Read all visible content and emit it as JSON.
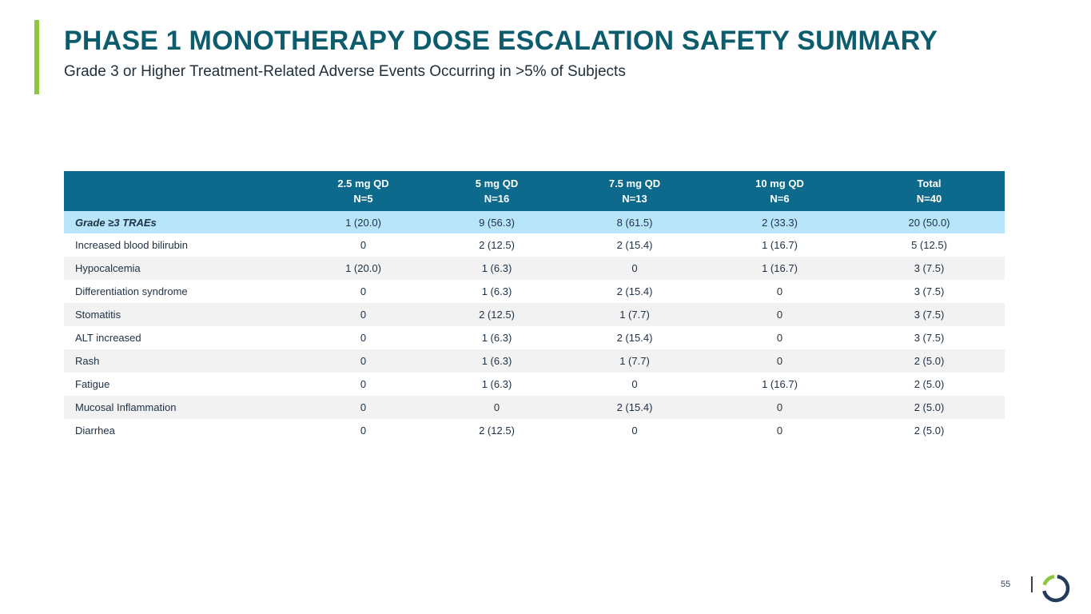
{
  "slide": {
    "title": "PHASE 1 MONOTHERAPY DOSE ESCALATION SAFETY SUMMARY",
    "subtitle": "Grade 3 or Higher Treatment-Related Adverse Events Occurring in >5% of Subjects"
  },
  "colors": {
    "accent_green": "#8dc63f",
    "title_teal": "#0d5c6d",
    "table_header_bg": "#0e6a8d",
    "highlight_row_bg": "#b8e5f9",
    "stripe_row_bg": "#f2f2f2",
    "body_text": "#203246",
    "logo_navy": "#243b5e"
  },
  "table": {
    "columns": [
      {
        "label": "",
        "sublabel": ""
      },
      {
        "label": "2.5 mg QD",
        "sublabel": "N=5"
      },
      {
        "label": "5 mg QD",
        "sublabel": "N=16"
      },
      {
        "label": "7.5 mg QD",
        "sublabel": "N=13"
      },
      {
        "label": "10 mg QD",
        "sublabel": "N=6"
      },
      {
        "label": "Total",
        "sublabel": "N=40"
      }
    ],
    "highlight_row": {
      "label": "Grade ≥3 TRAEs",
      "values": [
        "1 (20.0)",
        "9 (56.3)",
        "8 (61.5)",
        "2 (33.3)",
        "20 (50.0)"
      ]
    },
    "rows": [
      {
        "label": "Increased blood bilirubin",
        "values": [
          "0",
          "2 (12.5)",
          "2 (15.4)",
          "1 (16.7)",
          "5 (12.5)"
        ]
      },
      {
        "label": "Hypocalcemia",
        "values": [
          "1 (20.0)",
          "1 (6.3)",
          "0",
          "1 (16.7)",
          "3 (7.5)"
        ]
      },
      {
        "label": "Differentiation syndrome",
        "values": [
          "0",
          "1 (6.3)",
          "2 (15.4)",
          "0",
          "3 (7.5)"
        ]
      },
      {
        "label": "Stomatitis",
        "values": [
          "0",
          "2 (12.5)",
          "1 (7.7)",
          "0",
          "3 (7.5)"
        ]
      },
      {
        "label": "ALT increased",
        "values": [
          "0",
          "1 (6.3)",
          "2 (15.4)",
          "0",
          "3 (7.5)"
        ]
      },
      {
        "label": "Rash",
        "values": [
          "0",
          "1 (6.3)",
          "1 (7.7)",
          "0",
          "2 (5.0)"
        ]
      },
      {
        "label": "Fatigue",
        "values": [
          "0",
          "1 (6.3)",
          "0",
          "1 (16.7)",
          "2 (5.0)"
        ]
      },
      {
        "label": "Mucosal Inflammation",
        "values": [
          "0",
          "0",
          "2 (15.4)",
          "0",
          "2 (5.0)"
        ]
      },
      {
        "label": "Diarrhea",
        "values": [
          "0",
          "2 (12.5)",
          "0",
          "0",
          "2 (5.0)"
        ]
      }
    ]
  },
  "footer": {
    "page_number": "55",
    "logo_name": "ring-logo"
  }
}
